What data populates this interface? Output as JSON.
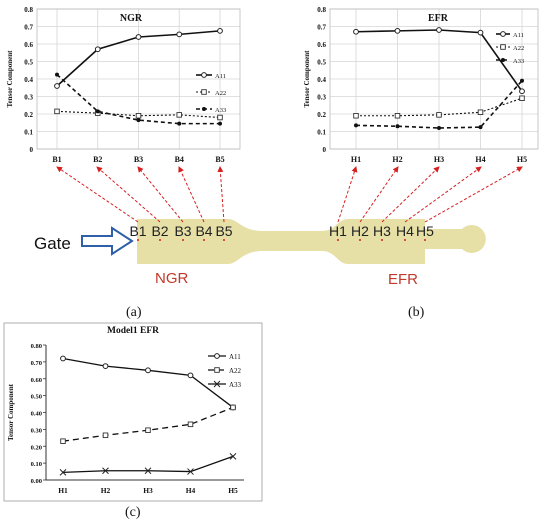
{
  "chart_data": [
    {
      "type": "line",
      "title": "NGR",
      "ylabel": "Tensor Component",
      "xlabel": "",
      "categories": [
        "B1",
        "B2",
        "B3",
        "B4",
        "B5"
      ],
      "ylim": [
        0,
        0.8
      ],
      "yticks": [
        "0",
        "0.1",
        "0.2",
        "0.3",
        "0.4",
        "0.5",
        "0.6",
        "0.7",
        "0.8"
      ],
      "grid": true,
      "legend": "right",
      "series": [
        {
          "name": "A11",
          "values": [
            0.36,
            0.57,
            0.64,
            0.655,
            0.675
          ]
        },
        {
          "name": "A22",
          "values": [
            0.215,
            0.205,
            0.19,
            0.195,
            0.18
          ]
        },
        {
          "name": "A33",
          "values": [
            0.425,
            0.215,
            0.165,
            0.145,
            0.145
          ]
        }
      ]
    },
    {
      "type": "line",
      "title": "EFR",
      "ylabel": "Tensor Component",
      "xlabel": "",
      "categories": [
        "H1",
        "H2",
        "H3",
        "H4",
        "H5"
      ],
      "ylim": [
        0,
        0.8
      ],
      "yticks": [
        "0",
        "0.1",
        "0.2",
        "0.3",
        "0.4",
        "0.5",
        "0.6",
        "0.7",
        "0.8"
      ],
      "grid": true,
      "legend": "right",
      "series": [
        {
          "name": "A11",
          "values": [
            0.67,
            0.675,
            0.68,
            0.665,
            0.33
          ]
        },
        {
          "name": "A22",
          "values": [
            0.19,
            0.19,
            0.195,
            0.21,
            0.29
          ]
        },
        {
          "name": "A33",
          "values": [
            0.135,
            0.13,
            0.12,
            0.125,
            0.39
          ]
        }
      ]
    },
    {
      "type": "line",
      "title": "Model1 EFR",
      "ylabel": "Tensor Component",
      "xlabel": "",
      "categories": [
        "H1",
        "H2",
        "H3",
        "H4",
        "H5"
      ],
      "ylim": [
        0,
        0.8
      ],
      "yticks": [
        "0.00",
        "0.10",
        "0.20",
        "0.30",
        "0.40",
        "0.50",
        "0.60",
        "0.70",
        "0.80"
      ],
      "grid": false,
      "legend": "right",
      "series": [
        {
          "name": "A11",
          "values": [
            0.72,
            0.675,
            0.65,
            0.62,
            0.43
          ]
        },
        {
          "name": "A22",
          "values": [
            0.23,
            0.265,
            0.295,
            0.33,
            0.43
          ]
        },
        {
          "name": "A33",
          "values": [
            0.045,
            0.055,
            0.055,
            0.05,
            0.14
          ]
        }
      ]
    }
  ],
  "diagram": {
    "gate_label": "Gate",
    "b_labels": [
      "B1",
      "B2",
      "B3",
      "B4",
      "B5"
    ],
    "h_labels": [
      "H1",
      "H2",
      "H3",
      "H4",
      "H5"
    ],
    "ngr_label": "NGR",
    "efr_label": "EFR",
    "colors": {
      "specimen": "#e6e0a6",
      "region_text": "#c0392b",
      "arrow": "#d62020",
      "gate_arrow": "#2e5fa8"
    }
  },
  "captions": {
    "a": "(a)",
    "b": "(b)",
    "c": "(c)"
  }
}
